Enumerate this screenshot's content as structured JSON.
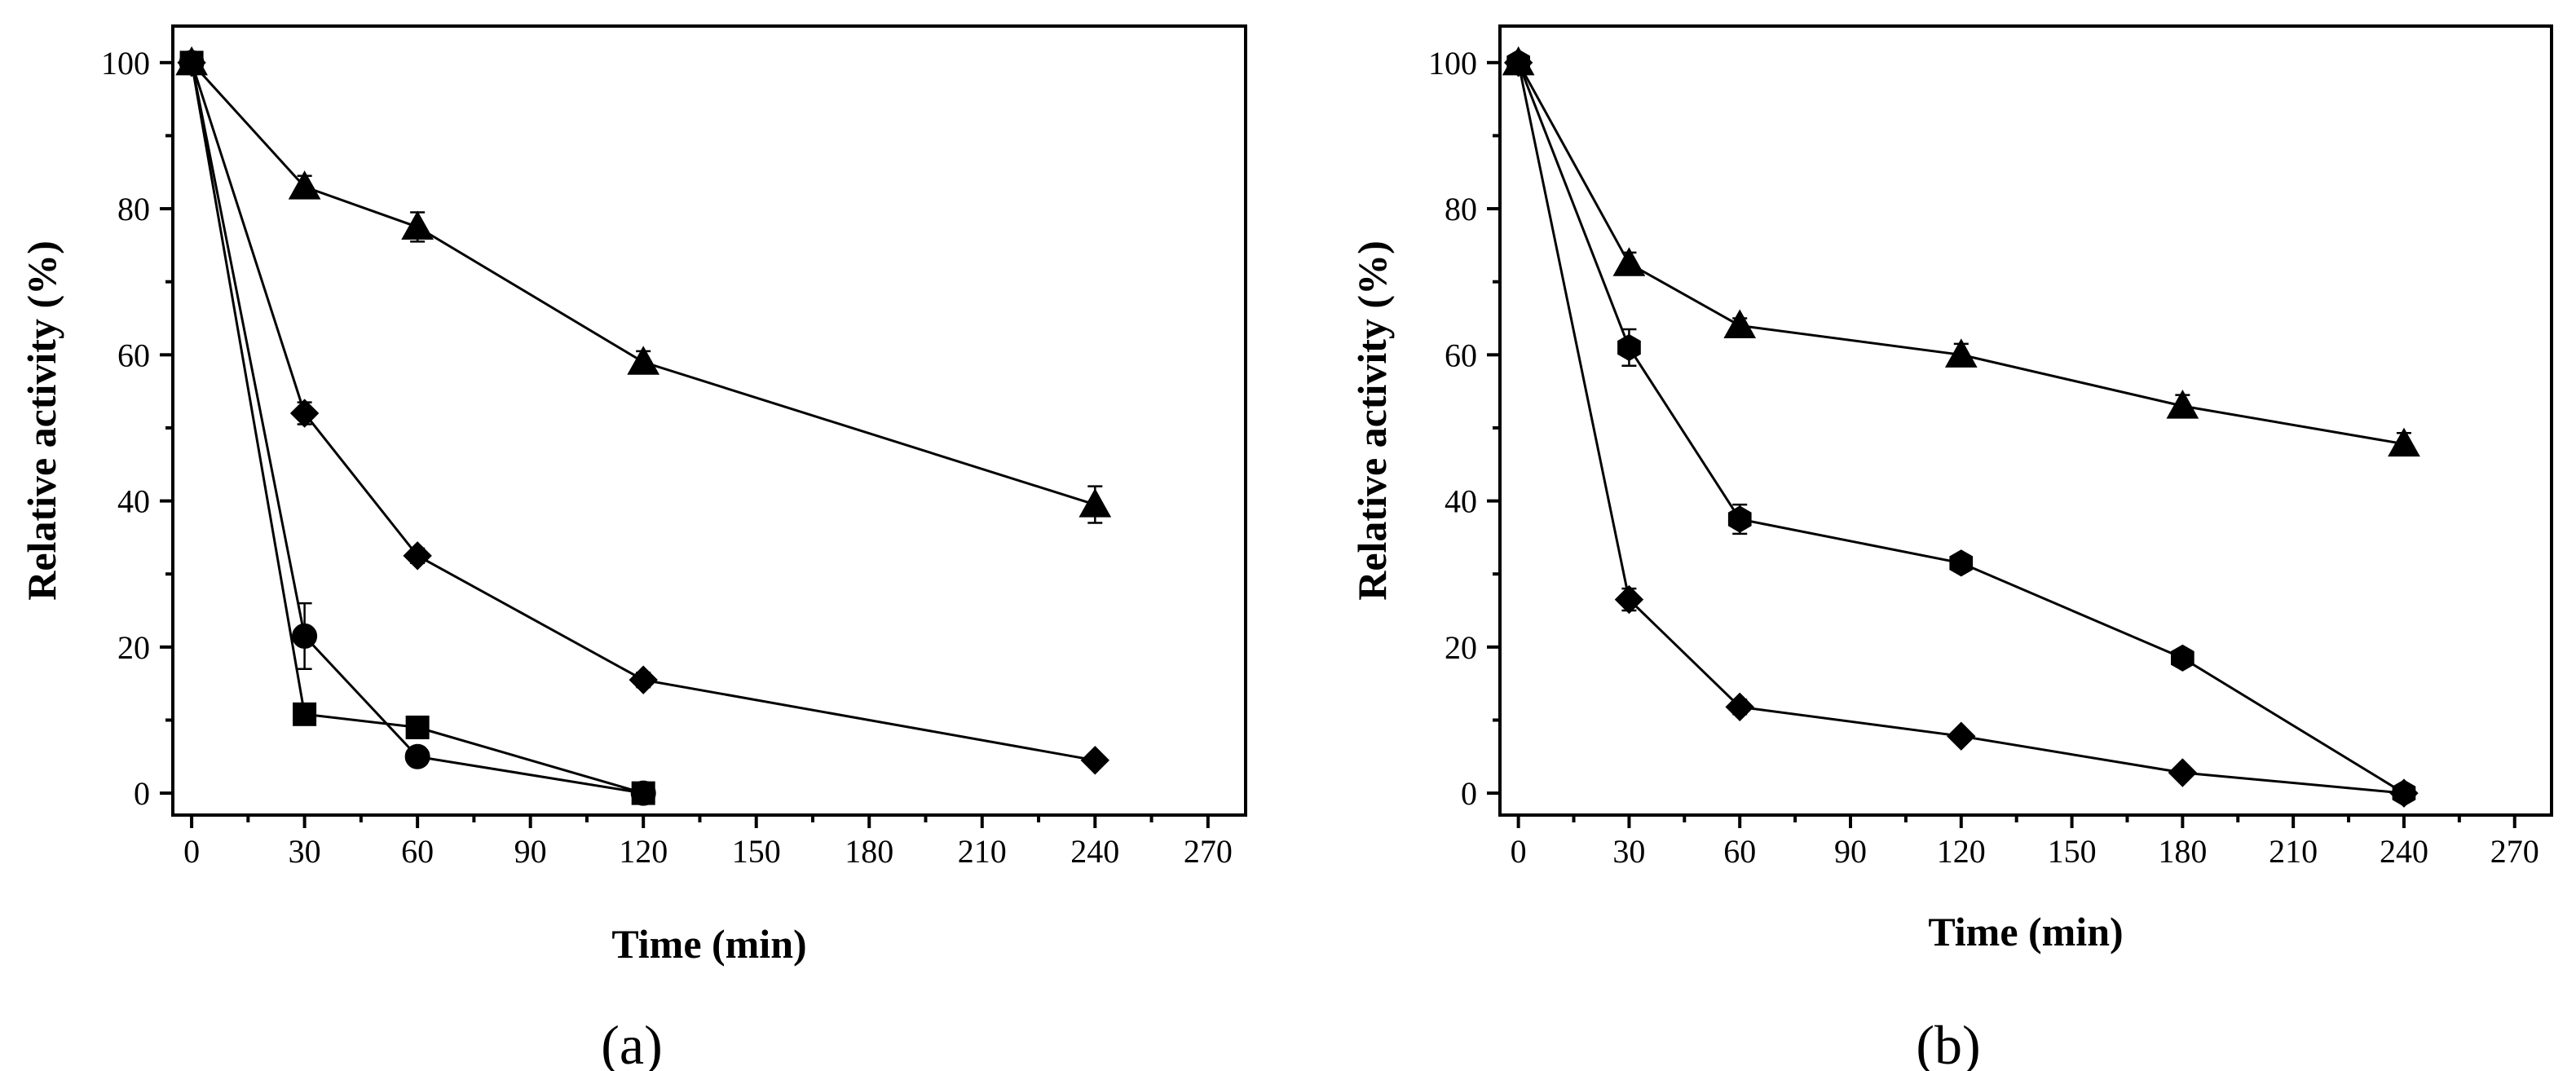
{
  "chart_data": [
    {
      "type": "line",
      "panel_label": "(a)",
      "xlabel": "Time (min)",
      "ylabel": "Relative activity (%)",
      "xlim": [
        -5,
        280
      ],
      "ylim": [
        -3,
        105
      ],
      "xticks": [
        0,
        30,
        60,
        90,
        120,
        150,
        180,
        210,
        240,
        270
      ],
      "yticks": [
        0,
        20,
        40,
        60,
        80,
        100
      ],
      "series": [
        {
          "name": "triangle",
          "marker": "triangle",
          "x": [
            0,
            30,
            60,
            120,
            240
          ],
          "y": [
            100,
            83,
            77.5,
            59,
            39.5
          ],
          "err": [
            0,
            1.5,
            2,
            1.5,
            2.5
          ]
        },
        {
          "name": "diamond",
          "marker": "diamond",
          "x": [
            0,
            30,
            60,
            120,
            240
          ],
          "y": [
            100,
            52,
            32.5,
            15.5,
            4.5
          ],
          "err": [
            0,
            1.5,
            1,
            1,
            0.5
          ]
        },
        {
          "name": "circle",
          "marker": "circle",
          "x": [
            0,
            30,
            60,
            120
          ],
          "y": [
            100,
            21.5,
            5,
            0
          ],
          "err": [
            0,
            4.5,
            0.5,
            0.5
          ]
        },
        {
          "name": "square",
          "marker": "square",
          "x": [
            0,
            30,
            60,
            120
          ],
          "y": [
            100,
            10.8,
            9,
            0
          ],
          "err": [
            0,
            0.5,
            0.5,
            0.5
          ]
        }
      ]
    },
    {
      "type": "line",
      "panel_label": "(b)",
      "xlabel": "Time (min)",
      "ylabel": "Relative activity (%)",
      "xlim": [
        -5,
        280
      ],
      "ylim": [
        -3,
        105
      ],
      "xticks": [
        0,
        30,
        60,
        90,
        120,
        150,
        180,
        210,
        240,
        270
      ],
      "yticks": [
        0,
        20,
        40,
        60,
        80,
        100
      ],
      "series": [
        {
          "name": "triangle",
          "marker": "triangle",
          "x": [
            0,
            30,
            60,
            120,
            180,
            240
          ],
          "y": [
            100,
            72.5,
            64,
            60,
            53,
            47.8
          ],
          "err": [
            0,
            1.5,
            1,
            1.5,
            1.5,
            1.5
          ]
        },
        {
          "name": "hexagon",
          "marker": "hexagon",
          "x": [
            0,
            30,
            60,
            120,
            180,
            240
          ],
          "y": [
            100,
            61,
            37.5,
            31.5,
            18.5,
            0
          ],
          "err": [
            0,
            2.5,
            2,
            1,
            1,
            0.5
          ]
        },
        {
          "name": "diamond",
          "marker": "diamond",
          "x": [
            0,
            30,
            60,
            120,
            180,
            240
          ],
          "y": [
            100,
            26.5,
            11.8,
            7.8,
            2.8,
            0
          ],
          "err": [
            0,
            1.5,
            1,
            0.5,
            0.5,
            0.5
          ]
        }
      ]
    }
  ]
}
